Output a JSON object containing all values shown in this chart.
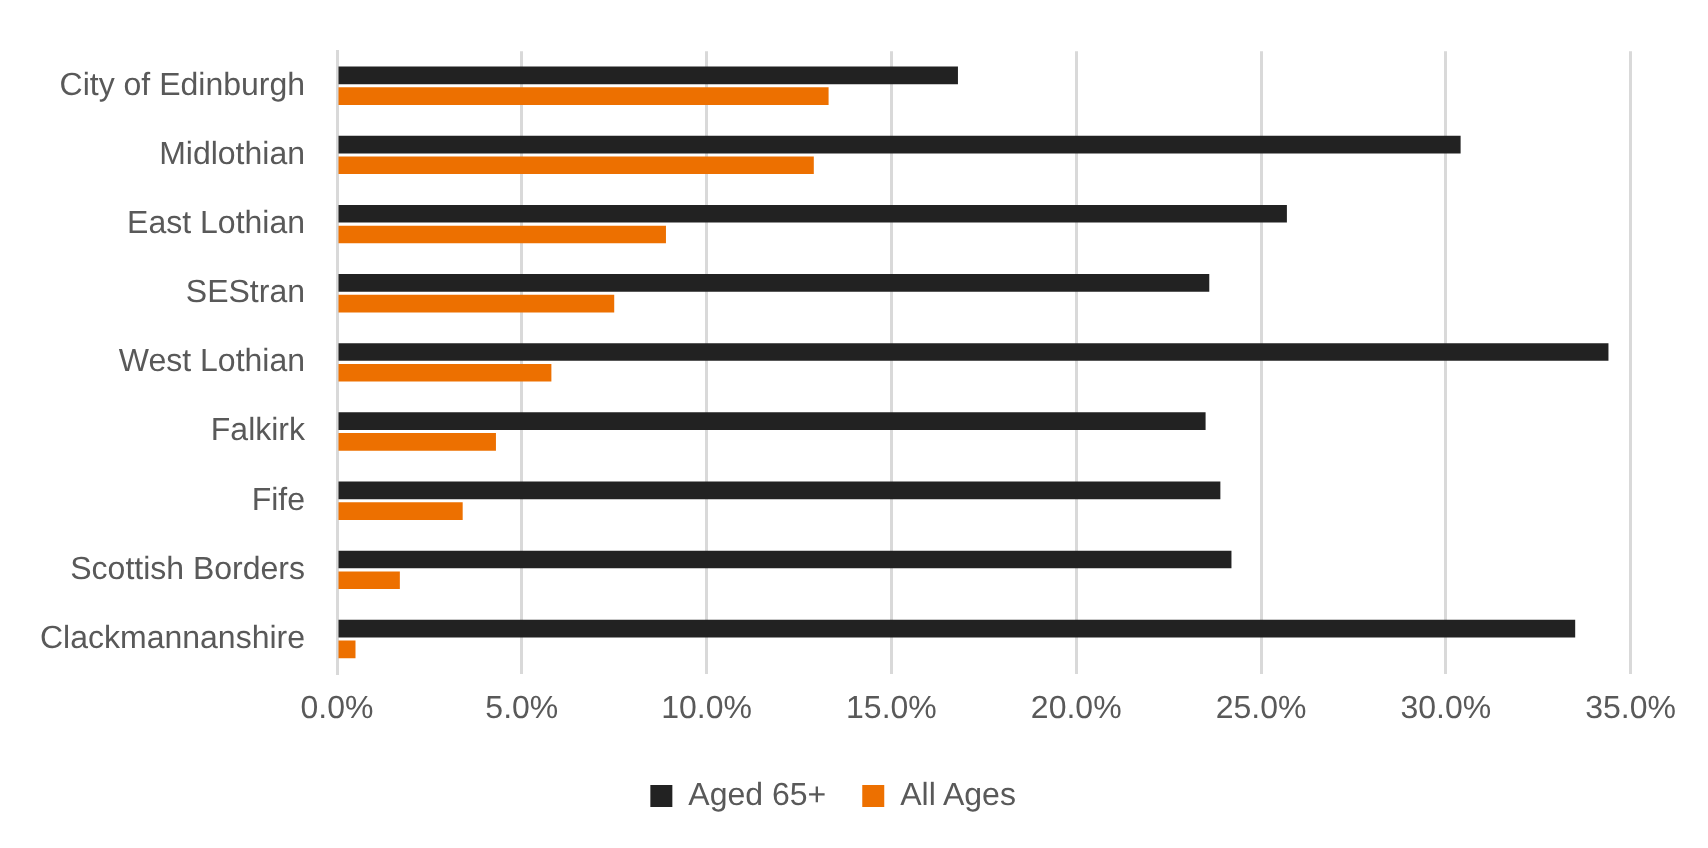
{
  "chart_data": {
    "type": "bar",
    "orientation": "horizontal",
    "categories": [
      "City of Edinburgh",
      "Midlothian",
      "East Lothian",
      "SEStran",
      "West Lothian",
      "Falkirk",
      "Fife",
      "Scottish Borders",
      "Clackmannanshire"
    ],
    "series": [
      {
        "name": "Aged 65+",
        "color": "#222222",
        "values": [
          16.8,
          30.4,
          25.7,
          23.6,
          34.4,
          23.5,
          23.9,
          24.2,
          33.5
        ]
      },
      {
        "name": "All Ages",
        "color": "#ed7000",
        "values": [
          13.3,
          12.9,
          8.9,
          7.5,
          5.8,
          4.3,
          3.4,
          1.7,
          0.5
        ]
      }
    ],
    "xlim": [
      0,
      35
    ],
    "xticks": [
      {
        "value": 0,
        "label": "0.0%"
      },
      {
        "value": 5,
        "label": "5.0%"
      },
      {
        "value": 10,
        "label": "10.0%"
      },
      {
        "value": 15,
        "label": "15.0%"
      },
      {
        "value": 20,
        "label": "20.0%"
      },
      {
        "value": 25,
        "label": "25.0%"
      },
      {
        "value": 30,
        "label": "30.0%"
      },
      {
        "value": 35,
        "label": "35.0%"
      }
    ],
    "grid": "x",
    "legend": "bottom"
  }
}
